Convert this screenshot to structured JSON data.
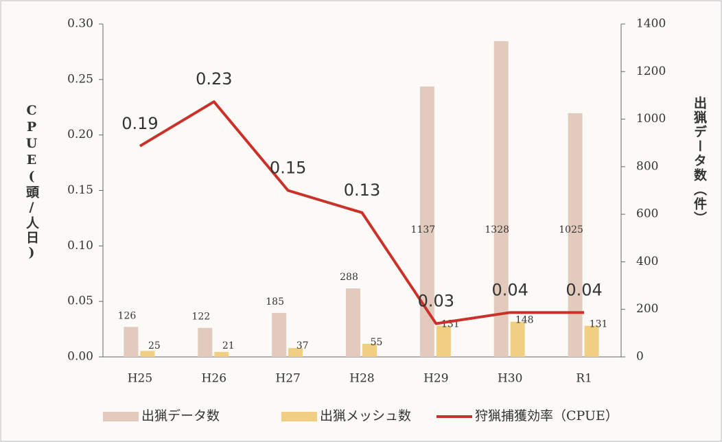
{
  "chart_data": {
    "type": "bar",
    "categories": [
      "H25",
      "H26",
      "H27",
      "H28",
      "H29",
      "H30",
      "R1"
    ],
    "series": [
      {
        "name": "出猟データ数",
        "type": "bar",
        "axis": "y2",
        "color": "#e2cbbd",
        "values": [
          126,
          122,
          185,
          288,
          1137,
          1328,
          1025
        ]
      },
      {
        "name": "出猟メッシュ数",
        "type": "bar",
        "axis": "y2",
        "color": "#f0cf82",
        "values": [
          25,
          21,
          37,
          55,
          131,
          148,
          131
        ]
      },
      {
        "name": "狩猟捕獲効率（CPUE）",
        "type": "line",
        "axis": "y",
        "color": "#c9322a",
        "values": [
          0.19,
          0.23,
          0.15,
          0.13,
          0.03,
          0.04,
          0.04
        ]
      }
    ],
    "ylabel": "CPUE(頭/人日)",
    "y2label": "出猟データ数（件）",
    "ylim": [
      0,
      0.3
    ],
    "yticks": [
      {
        "value": 0,
        "label": "0.00"
      },
      {
        "value": 0.05,
        "label": "0.05"
      },
      {
        "value": 0.1,
        "label": "0.10"
      },
      {
        "value": 0.15,
        "label": "0.15"
      },
      {
        "value": 0.2,
        "label": "0.20"
      },
      {
        "value": 0.25,
        "label": "0.25"
      },
      {
        "value": 0.3,
        "label": "0.30"
      }
    ],
    "y2lim": [
      0,
      1400
    ],
    "y2ticks": [
      0,
      200,
      400,
      600,
      800,
      1000,
      1200,
      1400
    ],
    "legend": "bottom"
  }
}
